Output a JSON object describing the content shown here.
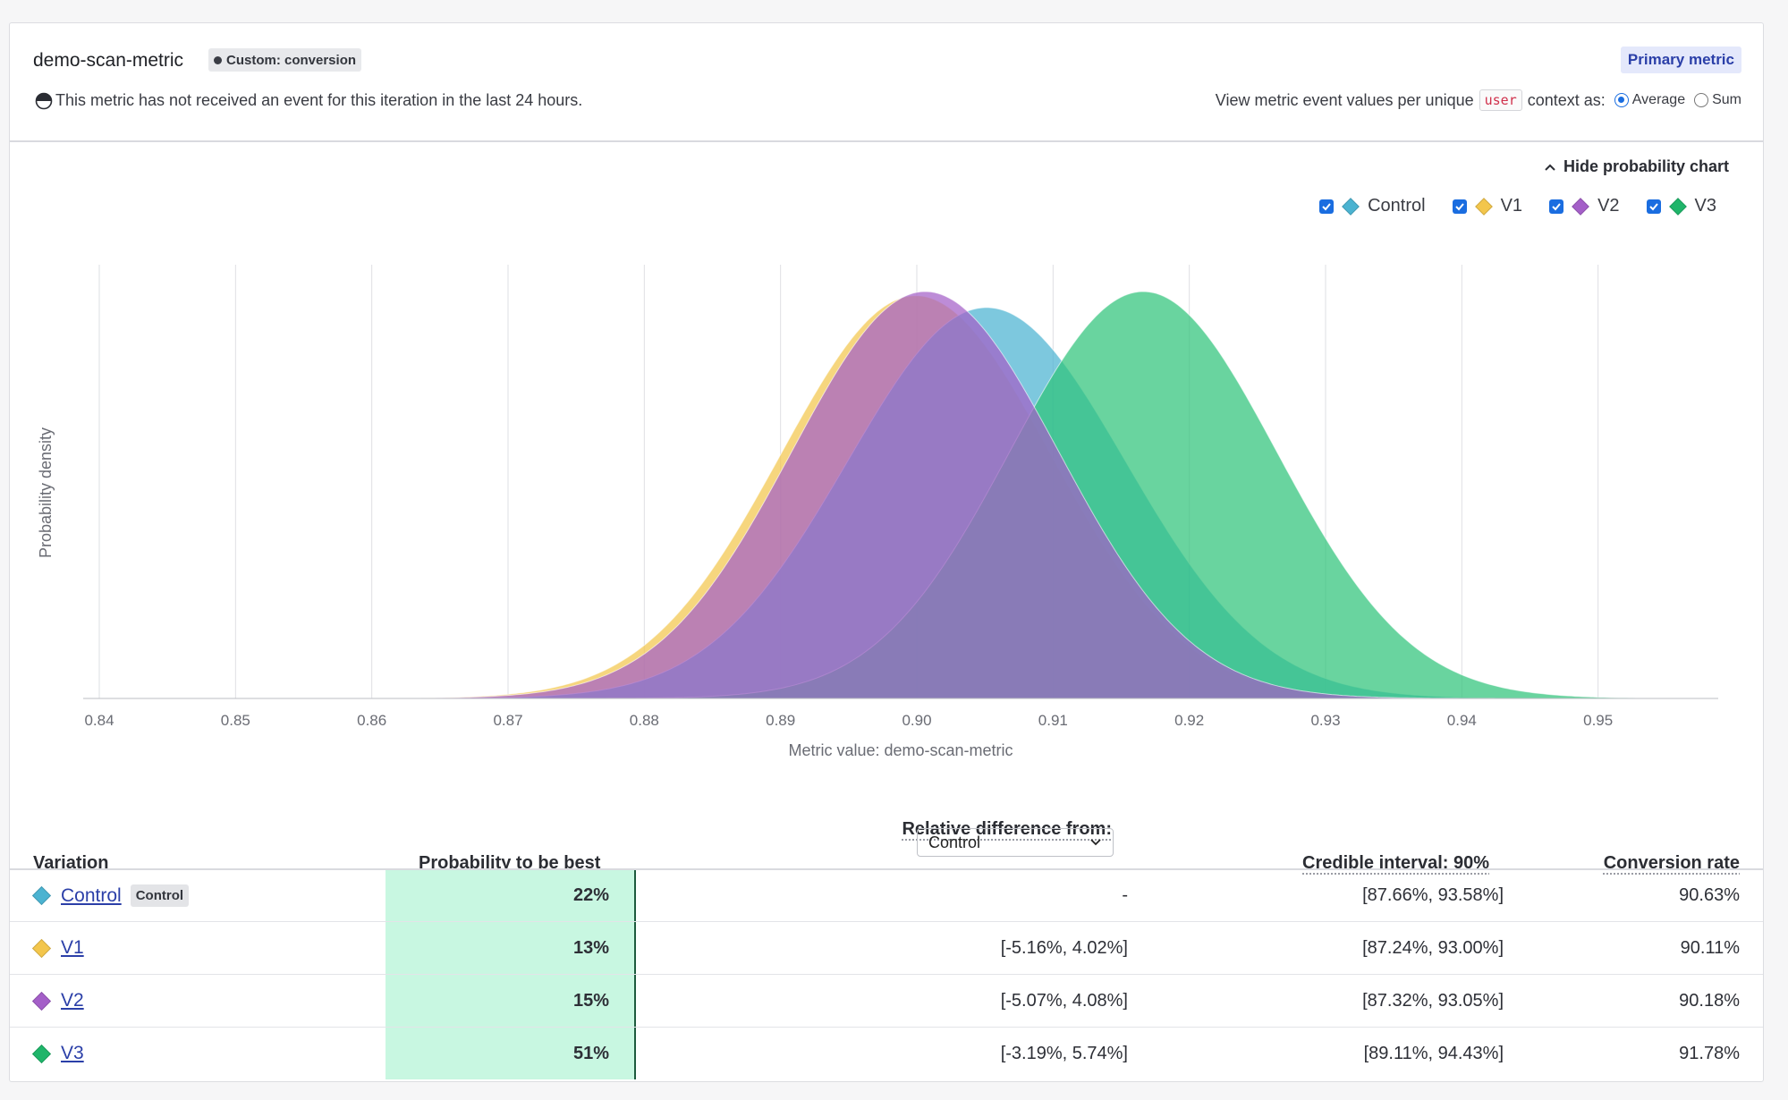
{
  "header": {
    "metric_name": "demo-scan-metric",
    "kind_badge": "Custom: conversion",
    "warning": "This metric has not received an event for this iteration in the last 24 hours.",
    "primary_badge": "Primary metric",
    "view_as_prefix": "View metric event values per unique",
    "context_kind": "user",
    "view_as_suffix": "context as:",
    "options": [
      {
        "label": "Average",
        "selected": true
      },
      {
        "label": "Sum",
        "selected": false
      }
    ]
  },
  "chart_controls": {
    "hide_label": "Hide probability chart"
  },
  "chart_data": {
    "type": "area",
    "xlabel": "Metric value: demo-scan-metric",
    "ylabel": "Probability density",
    "xlim": [
      0.84,
      0.96
    ],
    "x_ticks": [
      "0.84",
      "0.85",
      "0.86",
      "0.87",
      "0.88",
      "0.89",
      "0.90",
      "0.91",
      "0.92",
      "0.93",
      "0.94",
      "0.95"
    ],
    "grid": true,
    "legend_position": "top-right",
    "series": [
      {
        "name": "Control",
        "color": "#4bb3d1",
        "mean": 0.9063,
        "sd": 0.0102,
        "checked": true
      },
      {
        "name": "V1",
        "color": "#f3c64c",
        "mean": 0.9011,
        "sd": 0.0099,
        "checked": true
      },
      {
        "name": "V2",
        "color": "#a45fc8",
        "mean": 0.9018,
        "sd": 0.0098,
        "checked": true
      },
      {
        "name": "V3",
        "color": "#2fc47a",
        "mean": 0.9178,
        "sd": 0.0098,
        "checked": true
      }
    ]
  },
  "table": {
    "headers": {
      "variation": "Variation",
      "probability": "Probability to be best",
      "relative_label": "Relative difference from:",
      "relative_select": "Control",
      "credible": "Credible interval: 90%",
      "conversion": "Conversion rate"
    },
    "rows": [
      {
        "name": "Control",
        "color": "#4bb3d1",
        "badge": "Control",
        "prob": "22%",
        "rel": "-",
        "ci": "[87.66%, 93.58%]",
        "conv": "90.63%"
      },
      {
        "name": "V1",
        "color": "#f3c64c",
        "badge": "",
        "prob": "13%",
        "rel": "[-5.16%, 4.02%]",
        "ci": "[87.24%, 93.00%]",
        "conv": "90.11%"
      },
      {
        "name": "V2",
        "color": "#a45fc8",
        "badge": "",
        "prob": "15%",
        "rel": "[-5.07%, 4.08%]",
        "ci": "[87.32%, 93.05%]",
        "conv": "90.18%"
      },
      {
        "name": "V3",
        "color": "#1fb56a",
        "badge": "",
        "prob": "51%",
        "rel": "[-3.19%, 5.74%]",
        "ci": "[89.11%, 94.43%]",
        "conv": "91.78%"
      }
    ]
  }
}
